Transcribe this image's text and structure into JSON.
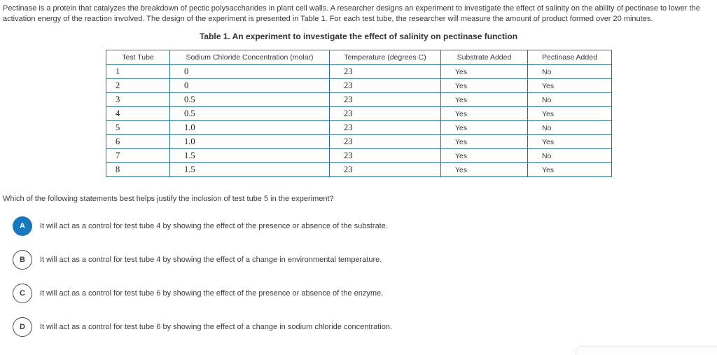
{
  "passage": {
    "text": "Pectinase is a protein that catalyzes the breakdown of pectic polysaccharides in plant cell walls. A researcher designs an experiment to investigate the effect of salinity on the ability of pectinase to lower the activation energy of the reaction involved. The design of the experiment is presented in Table 1. For each test tube, the researcher will measure the amount of product formed over 20 minutes."
  },
  "table": {
    "title": "Table 1. An experiment to investigate the effect of salinity on pectinase function",
    "columns": [
      "Test Tube",
      "Sodium Chloride Concentration (molar)",
      "Temperature (degrees C)",
      "Substrate Added",
      "Pectinase Added"
    ],
    "rows": [
      [
        "1",
        "0",
        "23",
        "Yes",
        "No"
      ],
      [
        "2",
        "0",
        "23",
        "Yes",
        "Yes"
      ],
      [
        "3",
        "0.5",
        "23",
        "Yes",
        "No"
      ],
      [
        "4",
        "0.5",
        "23",
        "Yes",
        "Yes"
      ],
      [
        "5",
        "1.0",
        "23",
        "Yes",
        "No"
      ],
      [
        "6",
        "1.0",
        "23",
        "Yes",
        "Yes"
      ],
      [
        "7",
        "1.5",
        "23",
        "Yes",
        "No"
      ],
      [
        "8",
        "1.5",
        "23",
        "Yes",
        "Yes"
      ]
    ]
  },
  "question": {
    "text": "Which of the following statements best helps justify the inclusion of test tube 5 in the experiment?"
  },
  "options": [
    {
      "letter": "A",
      "selected": true,
      "text": "It will act as a control for test tube 4 by showing the effect of the presence or absence of the substrate."
    },
    {
      "letter": "B",
      "selected": false,
      "text": "It will act as a control for test tube 4 by showing the effect of a change in environmental temperature."
    },
    {
      "letter": "C",
      "selected": false,
      "text": "It will act as a control for test tube 6 by showing the effect of the presence or absence of the enzyme."
    },
    {
      "letter": "D",
      "selected": false,
      "text": "It will act as a control for test tube 6 by showing the effect of a change in sodium chloride concentration."
    }
  ],
  "colors": {
    "accent_blue": "#1878be",
    "table_border": "#2e6e8e",
    "table_border_light": "#a9c7d6",
    "text": "#3c3c3c"
  }
}
